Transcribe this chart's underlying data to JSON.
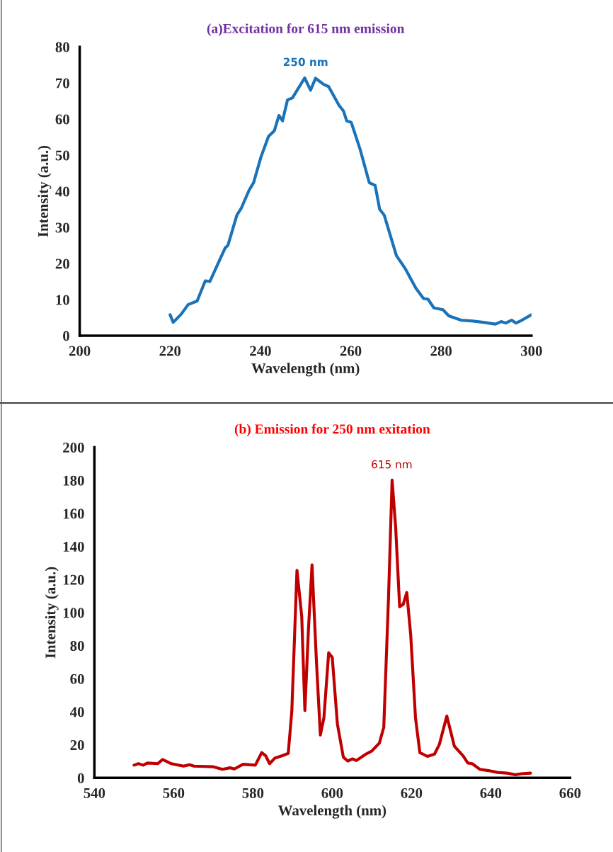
{
  "chart_data": [
    {
      "type": "line",
      "title": "(a)Excitation for 615 nm emission",
      "xlabel": "Wavelength (nm)",
      "ylabel": "Intensity (a.u.)",
      "xlim": [
        200,
        300
      ],
      "xticks": [
        200,
        220,
        240,
        260,
        280,
        300
      ],
      "ylim": [
        0,
        80
      ],
      "yticks": [
        0,
        10,
        20,
        30,
        40,
        50,
        60,
        70,
        80
      ],
      "grid": false,
      "legend": false,
      "marker": "none",
      "line_style": "solid",
      "annotations": [
        {
          "text": "250 nm",
          "x": 250,
          "y": 71.4
        }
      ],
      "series": [
        {
          "color": "#1a73b8",
          "x": [
            220,
            220.7,
            222.5,
            224,
            226,
            227.8,
            228.8,
            232.2,
            232.8,
            234.8,
            235.8,
            237.5,
            238.5,
            240.1,
            241.8,
            243.1,
            244.1,
            244.9,
            246,
            247.1,
            249.8,
            251.1,
            252.2,
            254,
            255.1,
            257.4,
            258.4,
            259.1,
            260.1,
            262.1,
            264.1,
            265.4,
            266.4,
            267.4,
            270.1,
            272.1,
            274.4,
            276.1,
            277.1,
            278.4,
            280.4,
            281.7,
            284.4,
            286.7,
            289.4,
            292,
            293.3,
            294.3,
            295.6,
            296.6,
            297.9,
            300
          ],
          "values": [
            5.8,
            3.7,
            6,
            8.6,
            9.6,
            15.2,
            15,
            24.3,
            25,
            33.4,
            35.4,
            40.3,
            42.4,
            49.4,
            55.2,
            56.8,
            61,
            59.5,
            65.3,
            65.9,
            71.4,
            68,
            71.3,
            69.6,
            69,
            63.8,
            62.2,
            59.5,
            59.1,
            51.5,
            42.4,
            41.6,
            35,
            33.4,
            22.2,
            18.5,
            13.2,
            10.3,
            10.1,
            7.7,
            7.2,
            5.5,
            4.3,
            4.1,
            3.7,
            3.2,
            3.9,
            3.5,
            4.3,
            3.5,
            4.3,
            5.8
          ]
        }
      ]
    },
    {
      "type": "line",
      "title": "(b) Emission for 250 nm exitation",
      "xlabel": "Wavelength (nm)",
      "ylabel": "Intensity (a.u.)",
      "xlim": [
        540,
        660
      ],
      "xticks": [
        540,
        560,
        580,
        600,
        620,
        640,
        660
      ],
      "ylim": [
        0,
        200
      ],
      "yticks": [
        0,
        20,
        40,
        60,
        80,
        100,
        120,
        140,
        160,
        180,
        200
      ],
      "grid": false,
      "legend": false,
      "marker": "none",
      "line_style": "solid",
      "annotations": [
        {
          "text": "615 nm",
          "x": 615,
          "y": 180
        }
      ],
      "series": [
        {
          "color": "#c00000",
          "x": [
            550,
            551.1,
            552.3,
            553.4,
            556,
            557.2,
            559.4,
            562.5,
            564,
            565.1,
            570,
            572.3,
            574.2,
            575.3,
            577.5,
            580.6,
            582.2,
            583.2,
            584.2,
            585.5,
            587.4,
            588.9,
            589.8,
            591.1,
            592.3,
            593.1,
            594,
            594.9,
            596,
            597,
            597.9,
            599.1,
            600,
            601.3,
            602.8,
            603.9,
            605.1,
            606.1,
            608.5,
            610,
            611.9,
            613,
            614.2,
            615.1,
            616,
            617,
            617.9,
            618.8,
            619.8,
            621,
            622.1,
            624,
            625.8,
            627,
            628.9,
            630.8,
            633,
            634.2,
            635.3,
            637.2,
            639.4,
            641.7,
            644,
            646.2,
            647.7,
            650
          ],
          "values": [
            7.7,
            8.6,
            7.7,
            9,
            8.6,
            11.1,
            8.6,
            7.1,
            8,
            7.1,
            6.7,
            5.2,
            6.1,
            5.4,
            8.2,
            7.7,
            15.3,
            13.4,
            8.6,
            11.9,
            13.4,
            14.8,
            40.3,
            125.6,
            97.8,
            40.8,
            90,
            128.9,
            71,
            25.9,
            36.4,
            75.7,
            72.9,
            32.6,
            12.5,
            10.2,
            11.5,
            10.5,
            14.4,
            16.3,
            21.1,
            30.7,
            109.3,
            180.2,
            151.5,
            103.5,
            105,
            112.2,
            86.3,
            36.4,
            15.3,
            13,
            14.4,
            20.1,
            37.4,
            19.2,
            13.4,
            9,
            8.6,
            5.2,
            4.4,
            3.3,
            2.9,
            1.9,
            2.5,
            2.9
          ]
        }
      ]
    }
  ]
}
